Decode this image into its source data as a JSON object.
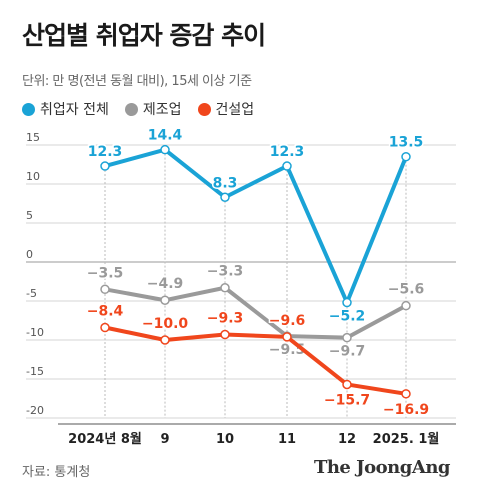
{
  "header": {
    "title": "산업별 취업자 증감 추이",
    "unit": "단위: 만 명(전년 동월 대비), 15세 이상 기준"
  },
  "footer": {
    "source": "자료: 통계청",
    "brand": "The JoongAng"
  },
  "chart_data": {
    "type": "line",
    "title": "산업별 취업자 증감 추이",
    "categories": [
      "2024년 8월",
      "9",
      "10",
      "11",
      "12",
      "2025. 1월"
    ],
    "ylim": [
      -20,
      15
    ],
    "yticks": [
      15,
      10,
      5,
      0,
      -5,
      -10,
      -15,
      -20
    ],
    "ytick_labels": [
      "15",
      "10",
      "5",
      "0",
      "-5",
      "-10",
      "-15",
      "-20"
    ],
    "grid": true,
    "legend_position": "top-left",
    "series": [
      {
        "name": "취업자 전체",
        "color": "#1aa3d6",
        "values": [
          12.3,
          14.4,
          8.3,
          12.3,
          -5.2,
          13.5
        ],
        "labels": [
          "12.3",
          "14.4",
          "8.3",
          "12.3",
          "−5.2",
          "13.5"
        ]
      },
      {
        "name": "제조업",
        "color": "#9a9a9a",
        "values": [
          -3.5,
          -4.9,
          -3.3,
          -9.5,
          -9.7,
          -5.6
        ],
        "labels": [
          "−3.5",
          "−4.9",
          "−3.3",
          "−9.5",
          "−9.7",
          "−5.6"
        ]
      },
      {
        "name": "건설업",
        "color": "#f0461c",
        "values": [
          -8.4,
          -10.0,
          -9.3,
          -9.6,
          -15.7,
          -16.9
        ],
        "labels": [
          "−8.4",
          "−10.0",
          "−9.3",
          "−9.6",
          "−15.7",
          "−16.9"
        ]
      }
    ]
  }
}
